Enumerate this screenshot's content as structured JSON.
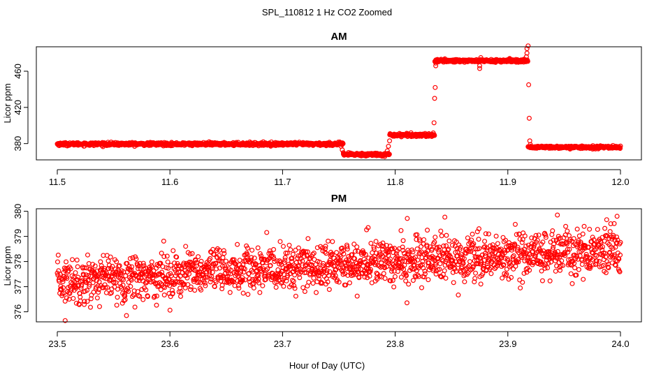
{
  "figure": {
    "suptitle": "SPL_110812  1 Hz CO2 Zoomed",
    "xlabel": "Hour of Day (UTC)"
  },
  "colors": {
    "points": "#ff0000",
    "axes": "#000000",
    "background": "#ffffff"
  },
  "chart_data": [
    {
      "type": "scatter",
      "title": "AM",
      "xlabel": "",
      "ylabel": "Licor ppm",
      "xlim": [
        11.5,
        12.0
      ],
      "ylim": [
        362,
        487
      ],
      "xticks": [
        11.5,
        11.6,
        11.7,
        11.8,
        11.9,
        12.0
      ],
      "xtick_labels": [
        "11.5",
        "11.6",
        "11.7",
        "11.8",
        "11.9",
        "12.0"
      ],
      "yticks": [
        380,
        420,
        460
      ],
      "ytick_labels": [
        "380",
        "420",
        "460"
      ],
      "grid": false,
      "marker": "open-circle",
      "n_points": 1800,
      "segments": [
        {
          "x_start": 11.5,
          "x_end": 11.754,
          "level": 379.5,
          "jitter": 1.5
        },
        {
          "x_start": 11.754,
          "x_end": 11.795,
          "level": 368,
          "jitter": 1.5
        },
        {
          "x_start": 11.795,
          "x_end": 11.835,
          "level": 389.5,
          "jitter": 1.5
        },
        {
          "x_start": 11.835,
          "x_end": 11.918,
          "level": 471.5,
          "jitter": 1.5
        },
        {
          "x_start": 11.918,
          "x_end": 12.0,
          "level": 376,
          "jitter": 1.2
        }
      ],
      "transition_points": [
        {
          "x": 11.752,
          "y": 377
        },
        {
          "x": 11.753,
          "y": 373
        },
        {
          "x": 11.754,
          "y": 370
        },
        {
          "x": 11.793,
          "y": 372
        },
        {
          "x": 11.794,
          "y": 377
        },
        {
          "x": 11.795,
          "y": 383
        },
        {
          "x": 11.8345,
          "y": 403
        },
        {
          "x": 11.835,
          "y": 430
        },
        {
          "x": 11.8355,
          "y": 442
        },
        {
          "x": 11.836,
          "y": 466
        },
        {
          "x": 11.836,
          "y": 469
        },
        {
          "x": 11.875,
          "y": 463
        },
        {
          "x": 11.875,
          "y": 466
        },
        {
          "x": 11.876,
          "y": 475
        },
        {
          "x": 11.917,
          "y": 480
        },
        {
          "x": 11.917,
          "y": 485
        },
        {
          "x": 11.918,
          "y": 488
        },
        {
          "x": 11.9185,
          "y": 445
        },
        {
          "x": 11.919,
          "y": 408
        },
        {
          "x": 11.9195,
          "y": 383
        },
        {
          "x": 11.92,
          "y": 379
        },
        {
          "x": 11.8375,
          "y": 473
        },
        {
          "x": 11.9165,
          "y": 476
        }
      ]
    },
    {
      "type": "scatter",
      "title": "PM",
      "xlabel": "",
      "ylabel": "Licor ppm",
      "xlim": [
        23.5,
        24.0
      ],
      "ylim": [
        375.6,
        380.1
      ],
      "xticks": [
        23.5,
        23.6,
        23.7,
        23.8,
        23.9,
        24.0
      ],
      "xtick_labels": [
        "23.5",
        "23.6",
        "23.7",
        "23.8",
        "23.9",
        "24.0"
      ],
      "yticks": [
        376,
        377,
        378,
        379,
        380
      ],
      "ytick_labels": [
        "376",
        "377",
        "378",
        "379",
        "380"
      ],
      "grid": false,
      "marker": "open-circle",
      "n_points": 1800,
      "trend": {
        "y_at_start": 377.2,
        "y_at_end": 378.5
      },
      "noise_sd": 0.45,
      "extremes": [
        {
          "x": 23.507,
          "y": 375.65
        },
        {
          "x": 23.944,
          "y": 379.85
        },
        {
          "x": 23.997,
          "y": 379.8
        },
        {
          "x": 23.776,
          "y": 379.35
        }
      ]
    }
  ]
}
